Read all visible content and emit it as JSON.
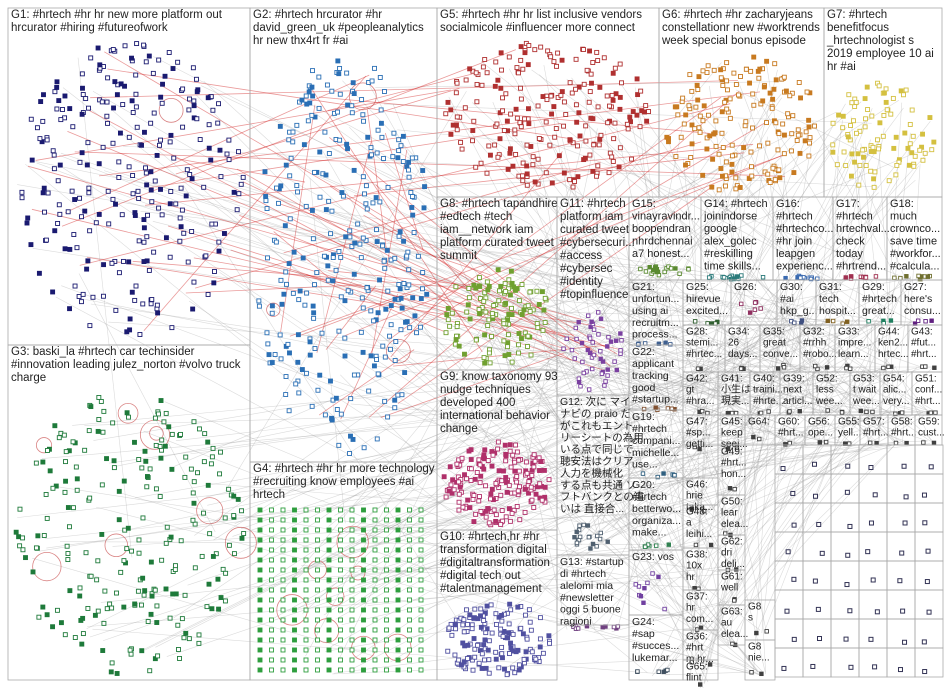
{
  "groups": [
    {
      "lines": [
        "G1: #hrtech #hr hr new more platform out",
        "hrcurator #hiring #futureofwork"
      ]
    },
    {
      "lines": [
        "G2: #hrtech hrcurator #hr",
        "david_green_uk #peopleanalytics",
        "hr new thx4rt fr #ai"
      ]
    },
    {
      "lines": [
        "G3: baski_la #hrtech car techinsider",
        "#innovation leading julez_norton #volvo truck",
        "charge"
      ]
    },
    {
      "lines": [
        "G4: #hrtech #hr hr more technology",
        "#recruiting know employees #ai",
        "hrtech"
      ]
    },
    {
      "lines": [
        "G5: #hrtech #hr hr list inclusive vendors",
        "socialmicole #influencer more connect"
      ]
    },
    {
      "lines": [
        "G6: #hrtech #hr zacharyjeans",
        "constellationr new #worktrends",
        "week special bonus episode"
      ]
    },
    {
      "lines": [
        "G7: #hrtech",
        "benefitfocus",
        "_hrtechnologist s",
        "2019 employee 10 ai",
        "hr #ai"
      ]
    },
    {
      "lines": [
        "G8: #hrtech tapandhire",
        "#edtech #tech",
        "iam__network iam",
        "platform curated tweet",
        "summit"
      ]
    },
    {
      "lines": [
        "G11: #hrtech",
        "platform iam",
        "curated tweet",
        "#cybersecuri...",
        "#access",
        "#cybersec",
        "#identity",
        "#topinfluence"
      ]
    },
    {
      "lines": [
        "G15:",
        "vinayravindr...",
        "boopendran",
        "nhrdchennai",
        "a7 honest..."
      ]
    },
    {
      "lines": [
        "G14: #hrtech",
        "joinindorse",
        "google",
        "alex_golec",
        "#reskilling",
        "time skills..."
      ]
    },
    {
      "lines": [
        "G16:",
        "#hrtech",
        "#hrtechco...",
        "#hr join",
        "leapgen",
        "experienc..."
      ]
    },
    {
      "lines": [
        "G17:",
        "#hrtech",
        "hrtechval...",
        "check",
        "today",
        "#hrtrend..."
      ]
    },
    {
      "lines": [
        "G18:",
        "much",
        "crownco...",
        "save time",
        "#workfor...",
        "#calcula..."
      ]
    },
    {
      "lines": [
        "G9: know taxonomy 93",
        "nudge techniques",
        "developed 400",
        "international behavior",
        "change"
      ]
    },
    {
      "lines": [
        "G10: #hrtech,hr #hr",
        "transformation digital",
        "#digitaltransformation",
        "#digital tech out",
        "#talentmanagement"
      ]
    },
    {
      "lines": [
        "G21:",
        "unfortun...",
        "using ai",
        "recruitm...",
        "process..."
      ]
    },
    {
      "lines": [
        "G25:",
        "hirevue",
        "excited..."
      ]
    },
    {
      "lines": [
        "G26:"
      ]
    },
    {
      "lines": [
        "G30:",
        "#ai",
        "hkp_g..."
      ]
    },
    {
      "lines": [
        "G31:",
        "tech",
        "hospit..."
      ]
    },
    {
      "lines": [
        "G29:",
        "#hrtech",
        "great..."
      ]
    },
    {
      "lines": [
        "G27:",
        "here's",
        "consu..."
      ]
    },
    {
      "lines": [
        "G12: 次に マイ",
        "ナビの praio だ",
        "がこれもエント",
        "リーシートの為用",
        "いる点で同じで",
        "聴安法はクリア",
        "人力を機械化",
        "する点も共通 ソ",
        "フトバンクとの違",
        "いは 直接合..."
      ]
    },
    {
      "lines": [
        "G22:",
        "applicant",
        "tracking",
        "good",
        "#startup..."
      ]
    },
    {
      "lines": [
        "G19:",
        "#hrtech",
        "compani...",
        "michelle...",
        "use..."
      ]
    },
    {
      "lines": [
        "G20:",
        "#hrtech",
        "betterwo...",
        "organiza...",
        "make..."
      ]
    },
    {
      "lines": [
        "G13: #startup",
        "di #hrtech",
        "alelomi mia",
        "#newsletter",
        "oggi 5 buone",
        "ragioni"
      ]
    },
    {
      "lines": [
        "G23: vos"
      ]
    },
    {
      "lines": [
        "G24:",
        "#sap",
        "#succes...",
        "lukemar..."
      ]
    },
    {
      "lines": [
        "G28:",
        "stemi...",
        "#hrtec..."
      ]
    },
    {
      "lines": [
        "G34:",
        "26",
        "days..."
      ]
    },
    {
      "lines": [
        "G35:",
        "great",
        "conve..."
      ]
    },
    {
      "lines": [
        "G32:",
        "#rrhh",
        "#robo..."
      ]
    },
    {
      "lines": [
        "G33:",
        "impre...",
        "learn..."
      ]
    },
    {
      "lines": [
        "G44:",
        "ken2...",
        "hrtec..."
      ]
    },
    {
      "lines": [
        "G43:",
        "#fut...",
        "#hrt..."
      ]
    },
    {
      "lines": [
        "G42:",
        "gt",
        "#hra..."
      ]
    },
    {
      "lines": [
        "G41:",
        "小生は",
        "現実..."
      ]
    },
    {
      "lines": [
        "G40:",
        "traini...",
        "#hrte..."
      ]
    },
    {
      "lines": [
        "G39:",
        "next",
        "articl..."
      ]
    },
    {
      "lines": [
        "G52:",
        "less",
        "wee..."
      ]
    },
    {
      "lines": [
        "G53:",
        "t wait",
        "wee..."
      ]
    },
    {
      "lines": [
        "G54:",
        "alic...",
        "very..."
      ]
    },
    {
      "lines": [
        "G51:",
        "conf...",
        "#hrt..."
      ]
    },
    {
      "lines": [
        "G47:",
        "#sp...",
        "getti..."
      ]
    },
    {
      "lines": [
        "G45:",
        "keep",
        "seei..."
      ]
    },
    {
      "lines": [
        "G64:"
      ]
    },
    {
      "lines": [
        "G60:",
        "#hrt..."
      ]
    },
    {
      "lines": [
        "G56:",
        "ope..."
      ]
    },
    {
      "lines": [
        "G55:",
        "yell..."
      ]
    },
    {
      "lines": [
        "G57:",
        "#hrt..."
      ]
    },
    {
      "lines": [
        "G58:",
        "#hrt..."
      ]
    },
    {
      "lines": [
        "G59:",
        "cust..."
      ]
    },
    {
      "lines": [
        "G49:",
        "#hrt...",
        "hon..."
      ]
    },
    {
      "lines": [
        "G46:",
        "hrie",
        "taka..."
      ]
    },
    {
      "lines": [
        "G48:",
        "a",
        "leihi..."
      ]
    },
    {
      "lines": [
        "G38:",
        "10x",
        "hr"
      ]
    },
    {
      "lines": [
        "G37:",
        "hr",
        "com..."
      ]
    },
    {
      "lines": [
        "G36:",
        "#hrt",
        "m hr..."
      ]
    },
    {
      "lines": [
        "G65:",
        "flint"
      ]
    },
    {
      "lines": [
        "G50:",
        "lear",
        "elea..."
      ]
    },
    {
      "lines": [
        "G62:",
        "dri",
        "deli..."
      ]
    },
    {
      "lines": [
        "G61:",
        "well"
      ]
    },
    {
      "lines": [
        "G63:",
        "au",
        "elea..."
      ]
    },
    {
      "lines": [
        "G8",
        "s"
      ]
    },
    {
      "lines": [
        "G8",
        "nie..."
      ]
    }
  ]
}
